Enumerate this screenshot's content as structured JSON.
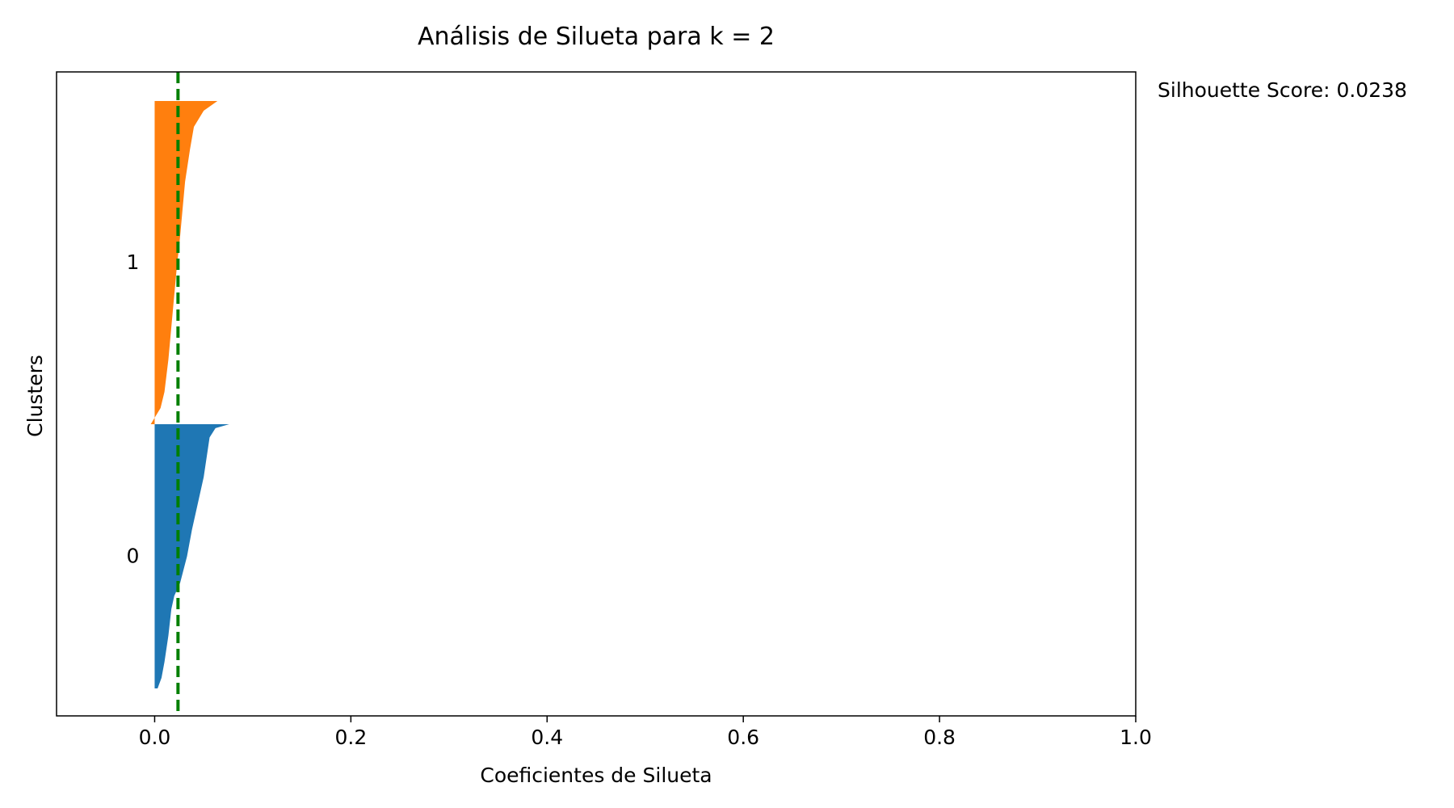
{
  "chart_data": {
    "type": "bar",
    "orientation": "horizontal",
    "title": "Análisis de Silueta para k = 2",
    "xlabel": "Coeficientes de Silueta",
    "ylabel": "Clusters",
    "xlim": [
      -0.1,
      1.0
    ],
    "xticks": [
      "0.0",
      "0.2",
      "0.4",
      "0.6",
      "0.8",
      "1.0"
    ],
    "xtick_values": [
      0.0,
      0.2,
      0.4,
      0.6,
      0.8,
      1.0
    ],
    "grid": false,
    "average_line": {
      "value": 0.0238,
      "color": "#007f00",
      "style": "dashed"
    },
    "annotation": "Silhouette Score: 0.0238",
    "clusters": [
      {
        "label": "0",
        "color": "#1f77b4",
        "profile": [
          [
            0.0,
            0.076
          ],
          [
            0.015,
            0.062
          ],
          [
            0.05,
            0.056
          ],
          [
            0.1,
            0.054
          ],
          [
            0.2,
            0.05
          ],
          [
            0.3,
            0.044
          ],
          [
            0.4,
            0.038
          ],
          [
            0.5,
            0.033
          ],
          [
            0.6,
            0.026
          ],
          [
            0.65,
            0.02
          ],
          [
            0.7,
            0.017
          ],
          [
            0.8,
            0.014
          ],
          [
            0.9,
            0.01
          ],
          [
            0.96,
            0.007
          ],
          [
            1.0,
            0.003
          ]
        ]
      },
      {
        "label": "1",
        "color": "#ff7f0e",
        "profile": [
          [
            0.0,
            0.064
          ],
          [
            0.03,
            0.05
          ],
          [
            0.08,
            0.04
          ],
          [
            0.15,
            0.036
          ],
          [
            0.25,
            0.031
          ],
          [
            0.35,
            0.028
          ],
          [
            0.45,
            0.025
          ],
          [
            0.5,
            0.023
          ],
          [
            0.6,
            0.02
          ],
          [
            0.7,
            0.017
          ],
          [
            0.8,
            0.014
          ],
          [
            0.9,
            0.01
          ],
          [
            0.95,
            0.006
          ],
          [
            0.98,
            0.0
          ],
          [
            1.0,
            -0.004
          ]
        ]
      }
    ]
  }
}
